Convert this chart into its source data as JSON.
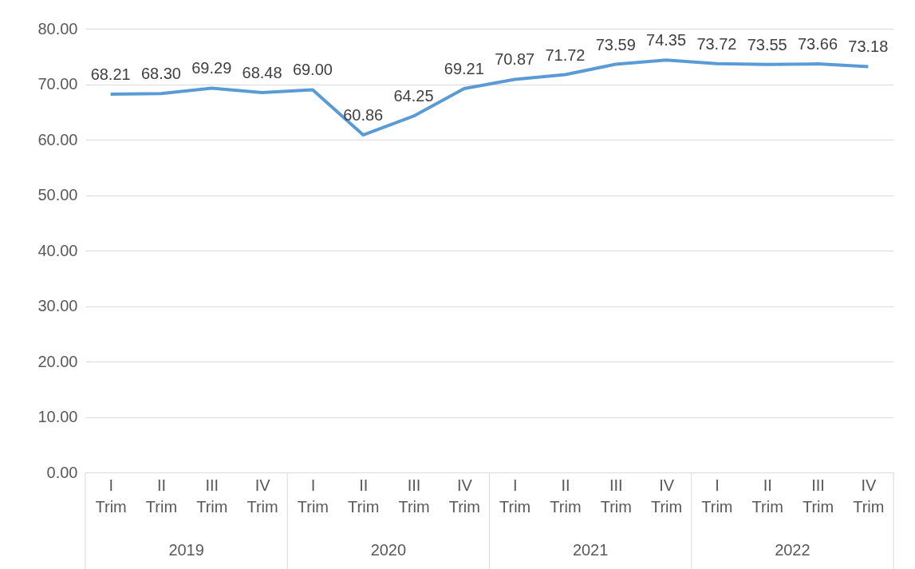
{
  "chart_data": {
    "type": "line",
    "categories": [
      "I Trim",
      "II Trim",
      "III Trim",
      "IV Trim",
      "I Trim",
      "II Trim",
      "III Trim",
      "IV Trim",
      "I Trim",
      "II Trim",
      "III Trim",
      "IV Trim",
      "I Trim",
      "II Trim",
      "III Trim",
      "IV Trim"
    ],
    "series": [
      {
        "color": "#5b9bd5",
        "values": [
          68.21,
          68.3,
          69.29,
          68.48,
          69.0,
          60.86,
          64.25,
          69.21,
          70.87,
          71.72,
          73.59,
          74.35,
          73.72,
          73.55,
          73.66,
          73.18
        ],
        "value_labels": [
          "68.21",
          "68.30",
          "69.29",
          "68.48",
          "69.00",
          "60.86",
          "64.25",
          "69.21",
          "70.87",
          "71.72",
          "73.59",
          "74.35",
          "73.72",
          "73.55",
          "73.66",
          "73.18"
        ]
      }
    ],
    "annotations": [
      "2019",
      "2020",
      "2021",
      "2022"
    ],
    "ylim": [
      0,
      80
    ],
    "yticks": [
      {
        "value": 0,
        "label": "0.00"
      },
      {
        "value": 10,
        "label": "10.00"
      },
      {
        "value": 20,
        "label": "20.00"
      },
      {
        "value": 30,
        "label": "30.00"
      },
      {
        "value": 40,
        "label": "40.00"
      },
      {
        "value": 50,
        "label": "50.00"
      },
      {
        "value": 60,
        "label": "60.00"
      },
      {
        "value": 70,
        "label": "70.00"
      },
      {
        "value": 80,
        "label": "80.00"
      }
    ],
    "grid": "y",
    "marker": "none",
    "line_style": "solid"
  }
}
